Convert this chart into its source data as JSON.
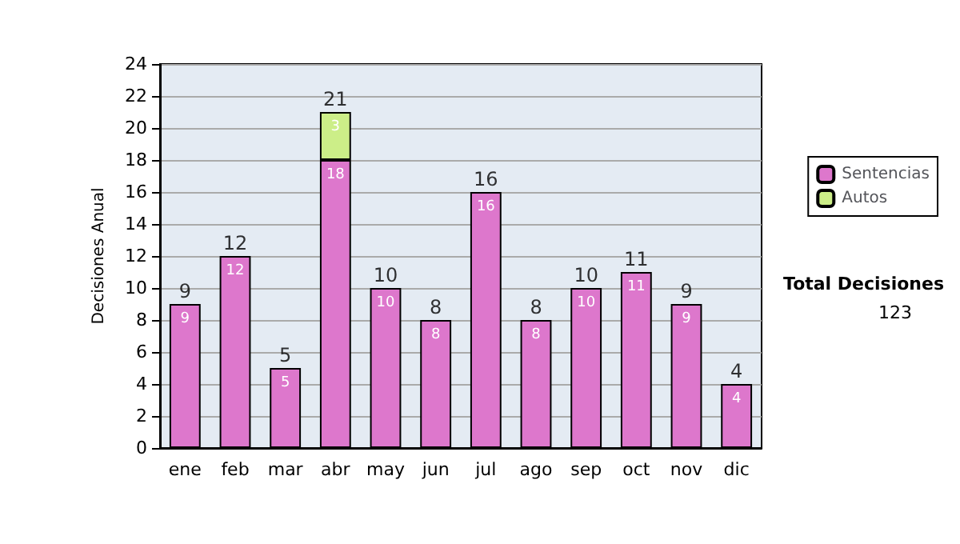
{
  "chart_data": {
    "type": "bar",
    "ylabel": "Decisiones Anual",
    "categories": [
      "ene",
      "feb",
      "mar",
      "abr",
      "may",
      "jun",
      "jul",
      "ago",
      "sep",
      "oct",
      "nov",
      "dic"
    ],
    "series": [
      {
        "name": "Sentencias",
        "color": "#dd77cc",
        "values": [
          9,
          12,
          5,
          18,
          10,
          8,
          16,
          8,
          10,
          11,
          9,
          4
        ],
        "value_labels": [
          "9",
          "12",
          "5",
          "18",
          "10",
          "8",
          "16",
          "8",
          "10",
          "11",
          "9",
          "4"
        ]
      },
      {
        "name": "Autos",
        "color": "#ccee88",
        "values": [
          null,
          null,
          null,
          3,
          null,
          null,
          null,
          null,
          null,
          null,
          null,
          null
        ],
        "value_labels": [
          null,
          null,
          null,
          "3",
          null,
          null,
          null,
          null,
          null,
          null,
          null,
          null
        ]
      }
    ],
    "stacked": true,
    "totals": [
      "9",
      "12",
      "5",
      "21",
      "10",
      "8",
      "16",
      "8",
      "10",
      "11",
      "9",
      "4"
    ],
    "ylim": [
      0,
      24
    ],
    "yticks": [
      0,
      2,
      4,
      6,
      8,
      10,
      12,
      14,
      16,
      18,
      20,
      22,
      24
    ],
    "grid": "y",
    "legend": "right",
    "annotations": [
      "Total Decisiones",
      "123"
    ]
  }
}
